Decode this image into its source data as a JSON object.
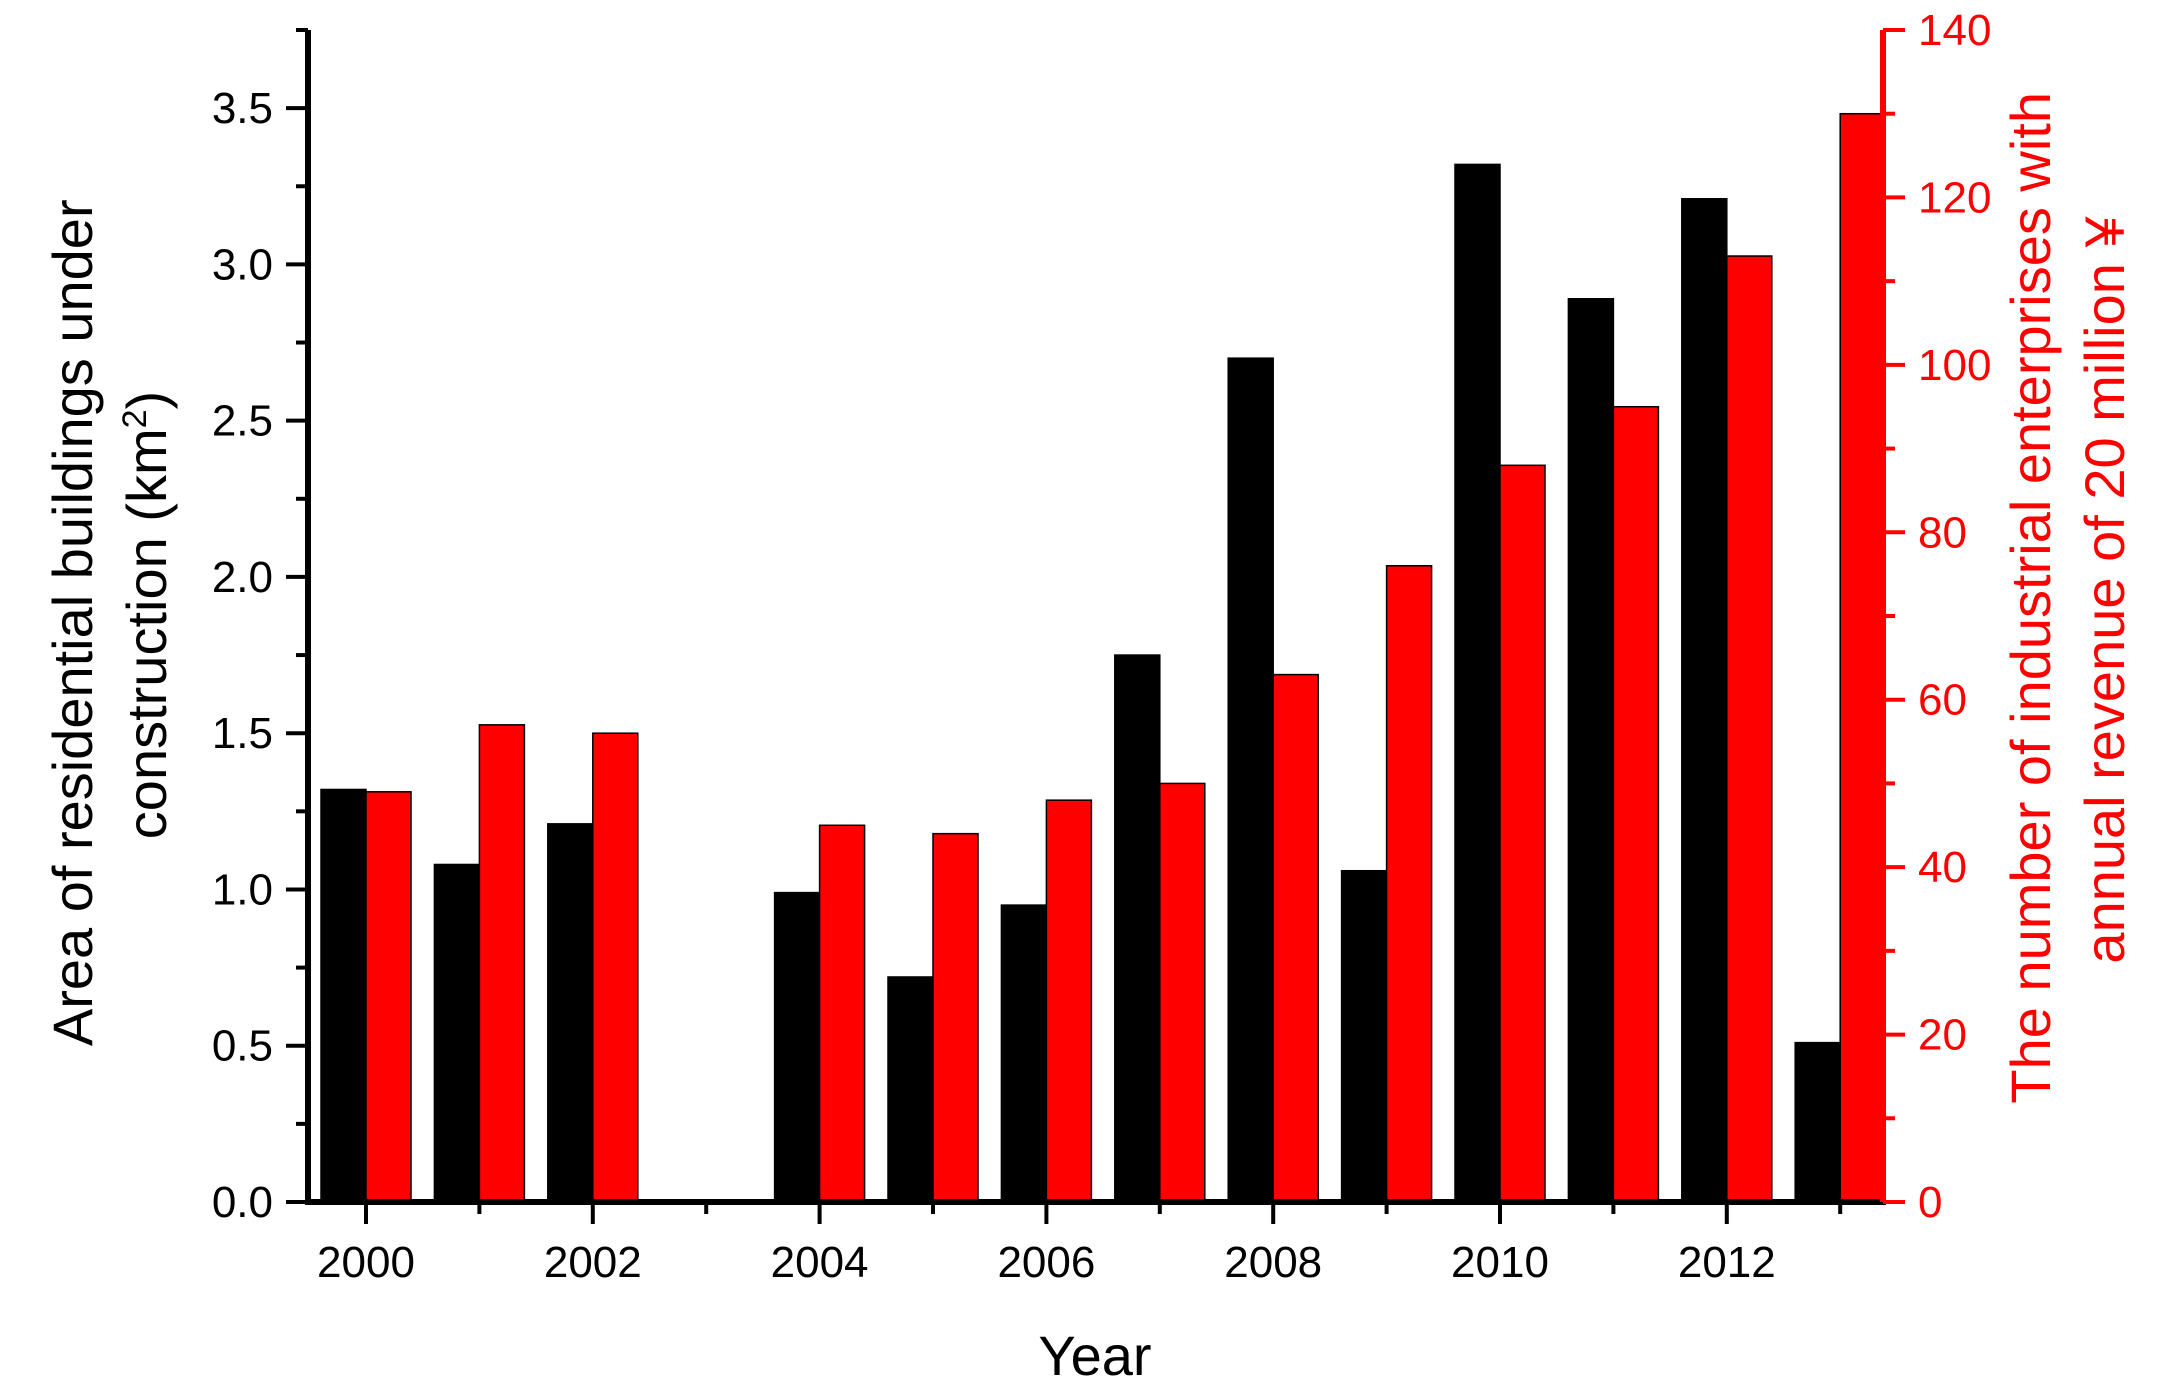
{
  "chart_data": {
    "type": "bar",
    "xlabel": "Year",
    "ylabel_left_lines": [
      "Area of residential buildings under",
      "construction (km",
      "2",
      ")"
    ],
    "ylabel_right_lines": [
      "The number of industrial enterprises with",
      "annual revenue of 20 million ¥"
    ],
    "x_tick_labels": [
      "2000",
      "2002",
      "2004",
      "2006",
      "2008",
      "2010",
      "2012"
    ],
    "x_tick_years": [
      2000,
      2002,
      2004,
      2006,
      2008,
      2010,
      2012
    ],
    "ylim_left": [
      0,
      3.75
    ],
    "ylim_right": [
      0,
      140
    ],
    "y_left_ticks": [
      "0.0",
      "0.5",
      "1.0",
      "1.5",
      "2.0",
      "2.5",
      "3.0",
      "3.5"
    ],
    "y_right_ticks": [
      "0",
      "20",
      "40",
      "60",
      "80",
      "100",
      "120",
      "140"
    ],
    "categories": [
      2000,
      2001,
      2002,
      2003,
      2004,
      2005,
      2006,
      2007,
      2008,
      2009,
      2010,
      2011,
      2012,
      2013
    ],
    "series": [
      {
        "axis": "left",
        "color": "#000000",
        "values": [
          1.32,
          1.08,
          1.21,
          null,
          0.99,
          0.72,
          0.95,
          1.75,
          2.7,
          1.06,
          3.32,
          2.89,
          3.21,
          0.51
        ]
      },
      {
        "axis": "right",
        "color": "#ff0000",
        "values": [
          49,
          57,
          56,
          null,
          45,
          44,
          48,
          50,
          63,
          76,
          88,
          95,
          113,
          130
        ]
      }
    ],
    "colors": {
      "left_axis": "#000000",
      "right_axis": "#ff0000"
    }
  }
}
